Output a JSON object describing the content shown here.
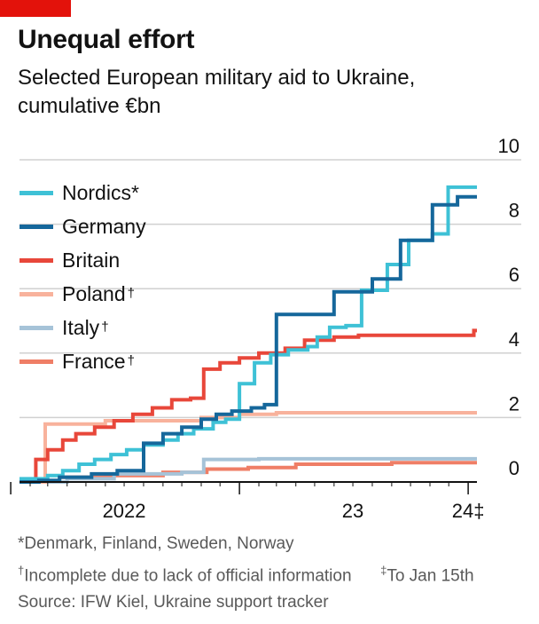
{
  "header": {
    "title": "Unequal effort",
    "subtitle": "Selected European military aid to Ukraine, cumulative €bn"
  },
  "footnotes": {
    "members": "*Denmark, Finland, Sweden, Norway",
    "incomplete": "Incomplete due to lack of official information",
    "incomplete_mark": "†",
    "cutoff": "To Jan 15th",
    "cutoff_mark": "‡",
    "source": "Source: IFW Kiel, Ukraine support tracker"
  },
  "colors": {
    "Nordics": "#3ec1d6",
    "Germany": "#15679b",
    "Britain": "#e8473a",
    "Poland": "#f8b29c",
    "Italy": "#a6c3d8",
    "France": "#ef7e66",
    "gridline": "#d0d0d0",
    "axis": "#121212"
  },
  "chart_data": {
    "type": "line",
    "step": true,
    "xlabel": "",
    "ylabel": "",
    "ylim": [
      0,
      10
    ],
    "y_ticks": [
      0,
      2,
      4,
      6,
      8,
      10
    ],
    "x_tick_labels": [
      "2022",
      "23",
      "24‡"
    ],
    "x_label_dates": [
      "2022-07-01",
      "2023-07-01",
      "2024-01-01"
    ],
    "x_tick_dates": [
      "2022-01-01",
      "2023-01-01",
      "2024-01-01"
    ],
    "xlim": [
      "2022-01-15",
      "2024-01-15"
    ],
    "grid": true,
    "legend_position": "top-left",
    "series": [
      {
        "name": "Nordics*",
        "mark": "",
        "points": [
          [
            "2022-01-15",
            0.1
          ],
          [
            "2022-03-01",
            0.2
          ],
          [
            "2022-03-25",
            0.35
          ],
          [
            "2022-04-20",
            0.55
          ],
          [
            "2022-05-15",
            0.7
          ],
          [
            "2022-06-10",
            0.85
          ],
          [
            "2022-07-05",
            1.0
          ],
          [
            "2022-08-01",
            1.15
          ],
          [
            "2022-09-01",
            1.3
          ],
          [
            "2022-09-25",
            1.5
          ],
          [
            "2022-10-20",
            1.65
          ],
          [
            "2022-11-20",
            1.85
          ],
          [
            "2022-12-10",
            1.95
          ],
          [
            "2023-01-01",
            3.05
          ],
          [
            "2023-01-25",
            3.7
          ],
          [
            "2023-02-20",
            3.95
          ],
          [
            "2023-03-20",
            4.1
          ],
          [
            "2023-04-20",
            4.2
          ],
          [
            "2023-05-05",
            4.5
          ],
          [
            "2023-05-25",
            4.8
          ],
          [
            "2023-06-20",
            4.85
          ],
          [
            "2023-07-15",
            5.95
          ],
          [
            "2023-08-05",
            5.95
          ],
          [
            "2023-08-25",
            6.75
          ],
          [
            "2023-09-10",
            6.75
          ],
          [
            "2023-09-28",
            7.5
          ],
          [
            "2023-10-20",
            7.5
          ],
          [
            "2023-11-05",
            7.7
          ],
          [
            "2023-11-30",
            9.15
          ],
          [
            "2024-01-15",
            9.15
          ]
        ]
      },
      {
        "name": "Germany",
        "mark": "",
        "points": [
          [
            "2022-01-15",
            0.0
          ],
          [
            "2022-02-15",
            0.05
          ],
          [
            "2022-03-20",
            0.15
          ],
          [
            "2022-05-10",
            0.25
          ],
          [
            "2022-06-20",
            0.35
          ],
          [
            "2022-08-01",
            1.2
          ],
          [
            "2022-09-01",
            1.5
          ],
          [
            "2022-10-01",
            1.7
          ],
          [
            "2022-11-01",
            1.95
          ],
          [
            "2022-11-25",
            2.1
          ],
          [
            "2022-12-20",
            2.2
          ],
          [
            "2023-01-20",
            2.3
          ],
          [
            "2023-02-10",
            2.4
          ],
          [
            "2023-03-01",
            5.2
          ],
          [
            "2023-05-10",
            5.2
          ],
          [
            "2023-06-01",
            5.9
          ],
          [
            "2023-07-10",
            5.9
          ],
          [
            "2023-08-01",
            6.3
          ],
          [
            "2023-08-30",
            6.3
          ],
          [
            "2023-09-15",
            7.5
          ],
          [
            "2023-10-20",
            7.5
          ],
          [
            "2023-11-05",
            8.6
          ],
          [
            "2023-12-01",
            8.6
          ],
          [
            "2023-12-15",
            8.85
          ],
          [
            "2024-01-15",
            8.85
          ]
        ]
      },
      {
        "name": "Britain",
        "mark": "",
        "points": [
          [
            "2022-01-15",
            0.05
          ],
          [
            "2022-02-10",
            0.7
          ],
          [
            "2022-03-01",
            1.0
          ],
          [
            "2022-03-25",
            1.3
          ],
          [
            "2022-04-15",
            1.5
          ],
          [
            "2022-05-15",
            1.7
          ],
          [
            "2022-06-15",
            1.9
          ],
          [
            "2022-07-15",
            2.1
          ],
          [
            "2022-08-15",
            2.3
          ],
          [
            "2022-09-15",
            2.55
          ],
          [
            "2022-10-15",
            2.6
          ],
          [
            "2022-11-05",
            3.5
          ],
          [
            "2022-12-01",
            3.7
          ],
          [
            "2023-01-01",
            3.85
          ],
          [
            "2023-02-01",
            4.0
          ],
          [
            "2023-03-15",
            4.15
          ],
          [
            "2023-04-15",
            4.4
          ],
          [
            "2023-06-01",
            4.5
          ],
          [
            "2023-07-10",
            4.55
          ],
          [
            "2024-01-10",
            4.7
          ],
          [
            "2024-01-15",
            4.7
          ]
        ]
      },
      {
        "name": "Poland",
        "mark": "†",
        "points": [
          [
            "2022-01-15",
            0.0
          ],
          [
            "2022-02-25",
            1.8
          ],
          [
            "2022-06-01",
            1.9
          ],
          [
            "2022-11-01",
            2.0
          ],
          [
            "2023-01-01",
            2.1
          ],
          [
            "2023-03-01",
            2.15
          ],
          [
            "2024-01-15",
            2.15
          ]
        ]
      },
      {
        "name": "Italy",
        "mark": "†",
        "points": [
          [
            "2022-01-15",
            0.0
          ],
          [
            "2022-04-01",
            0.1
          ],
          [
            "2022-06-15",
            0.25
          ],
          [
            "2022-10-01",
            0.3
          ],
          [
            "2022-11-05",
            0.7
          ],
          [
            "2023-02-01",
            0.72
          ],
          [
            "2024-01-15",
            0.72
          ]
        ]
      },
      {
        "name": "France",
        "mark": "†",
        "points": [
          [
            "2022-01-15",
            0.0
          ],
          [
            "2022-03-20",
            0.15
          ],
          [
            "2022-06-01",
            0.2
          ],
          [
            "2022-09-01",
            0.3
          ],
          [
            "2022-11-10",
            0.4
          ],
          [
            "2023-01-15",
            0.45
          ],
          [
            "2023-04-01",
            0.55
          ],
          [
            "2023-09-01",
            0.6
          ],
          [
            "2024-01-15",
            0.6
          ]
        ]
      }
    ]
  }
}
